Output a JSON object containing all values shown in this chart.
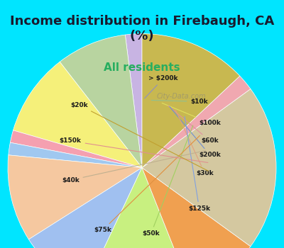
{
  "title": "Income distribution in Firebaugh, CA\n(%)",
  "subtitle": "All residents",
  "title_color": "#1a1a2e",
  "subtitle_color": "#2ecc71",
  "background_top": "#00e5ff",
  "background_chart": "#d4edda",
  "labels": [
    "> $200k",
    "$10k",
    "$100k",
    "$60k",
    "$200k",
    "$30k",
    "$125k",
    "$50k",
    "$75k",
    "$40k",
    "$150k",
    "$20k"
  ],
  "values": [
    2.0,
    8.5,
    10.0,
    1.5,
    1.5,
    10.5,
    9.0,
    13.0,
    9.0,
    20.0,
    2.0,
    13.0
  ],
  "colors": [
    "#c8b4e3",
    "#b8d4a0",
    "#f5f07a",
    "#f5a0b0",
    "#a0c8f0",
    "#f5c8a0",
    "#a0c0f0",
    "#c8f080",
    "#f0a050",
    "#d4c8a0",
    "#f0a8b0",
    "#c8b850"
  ],
  "startangle": 90,
  "watermark": "City-Data.com"
}
